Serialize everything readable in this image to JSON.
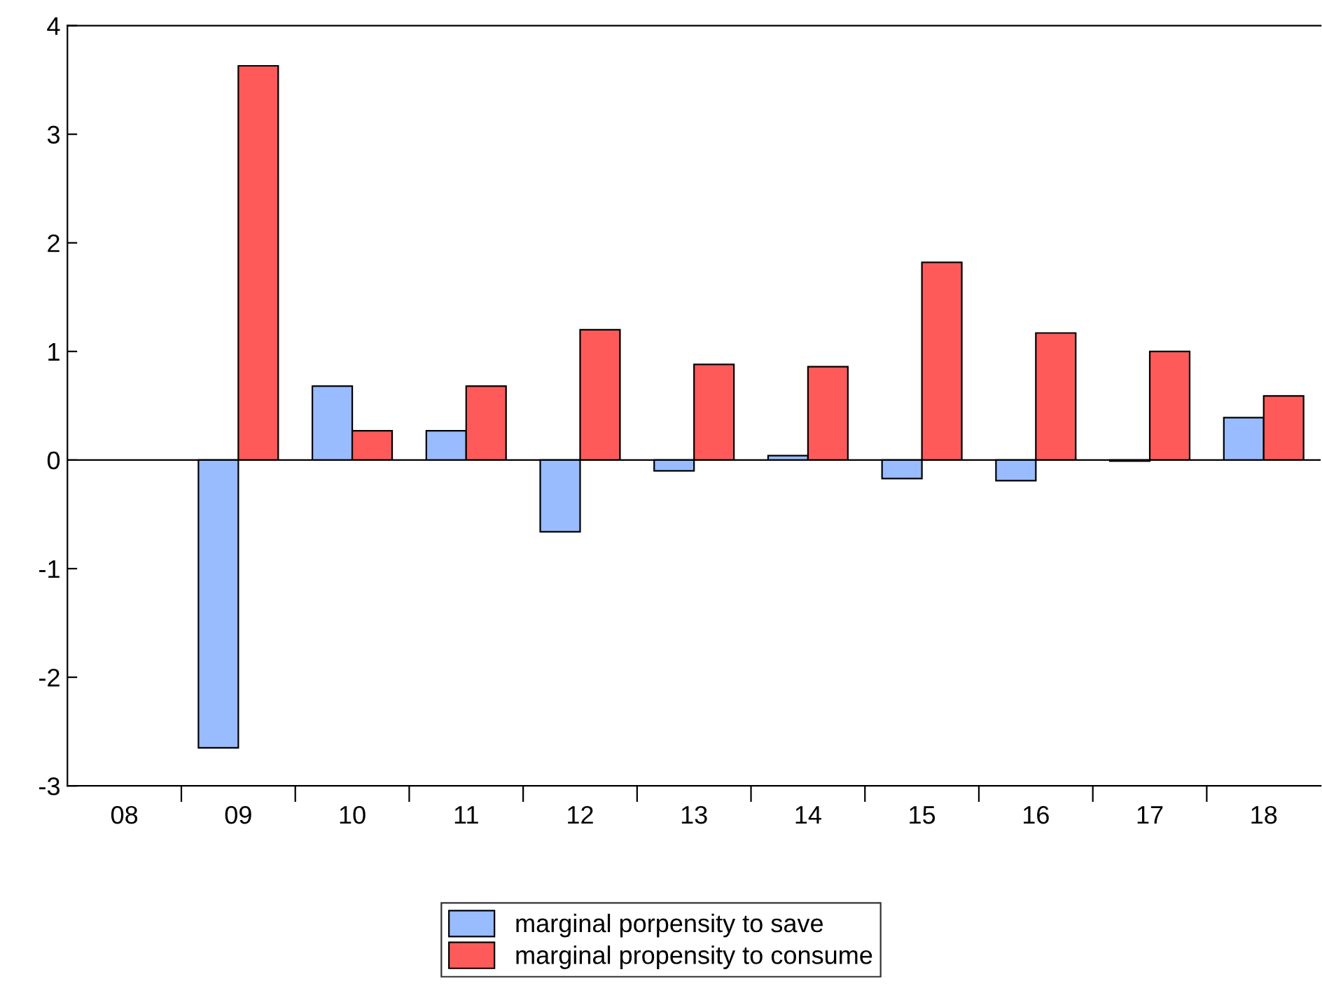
{
  "chart_data": {
    "type": "bar",
    "categories": [
      "08",
      "09",
      "10",
      "11",
      "12",
      "13",
      "14",
      "15",
      "16",
      "17",
      "18"
    ],
    "series": [
      {
        "name": "marginal porpensity to save",
        "color": "#99bbff",
        "values": [
          null,
          -2.65,
          0.68,
          0.27,
          -0.66,
          -0.1,
          0.04,
          -0.17,
          -0.19,
          -0.01,
          0.39
        ]
      },
      {
        "name": "marginal propensity to consume",
        "color": "#ff5a5a",
        "values": [
          null,
          3.63,
          0.27,
          0.68,
          1.2,
          0.88,
          0.86,
          1.82,
          1.17,
          1.0,
          0.59
        ]
      }
    ],
    "ylim": [
      -3,
      4
    ],
    "yticks": [
      -3,
      -2,
      -1,
      0,
      1,
      2,
      3,
      4
    ],
    "grid": false,
    "legend": "bottom",
    "ref_lines": [
      {
        "axis": "y",
        "value": 0,
        "color": "#000000"
      }
    ]
  }
}
